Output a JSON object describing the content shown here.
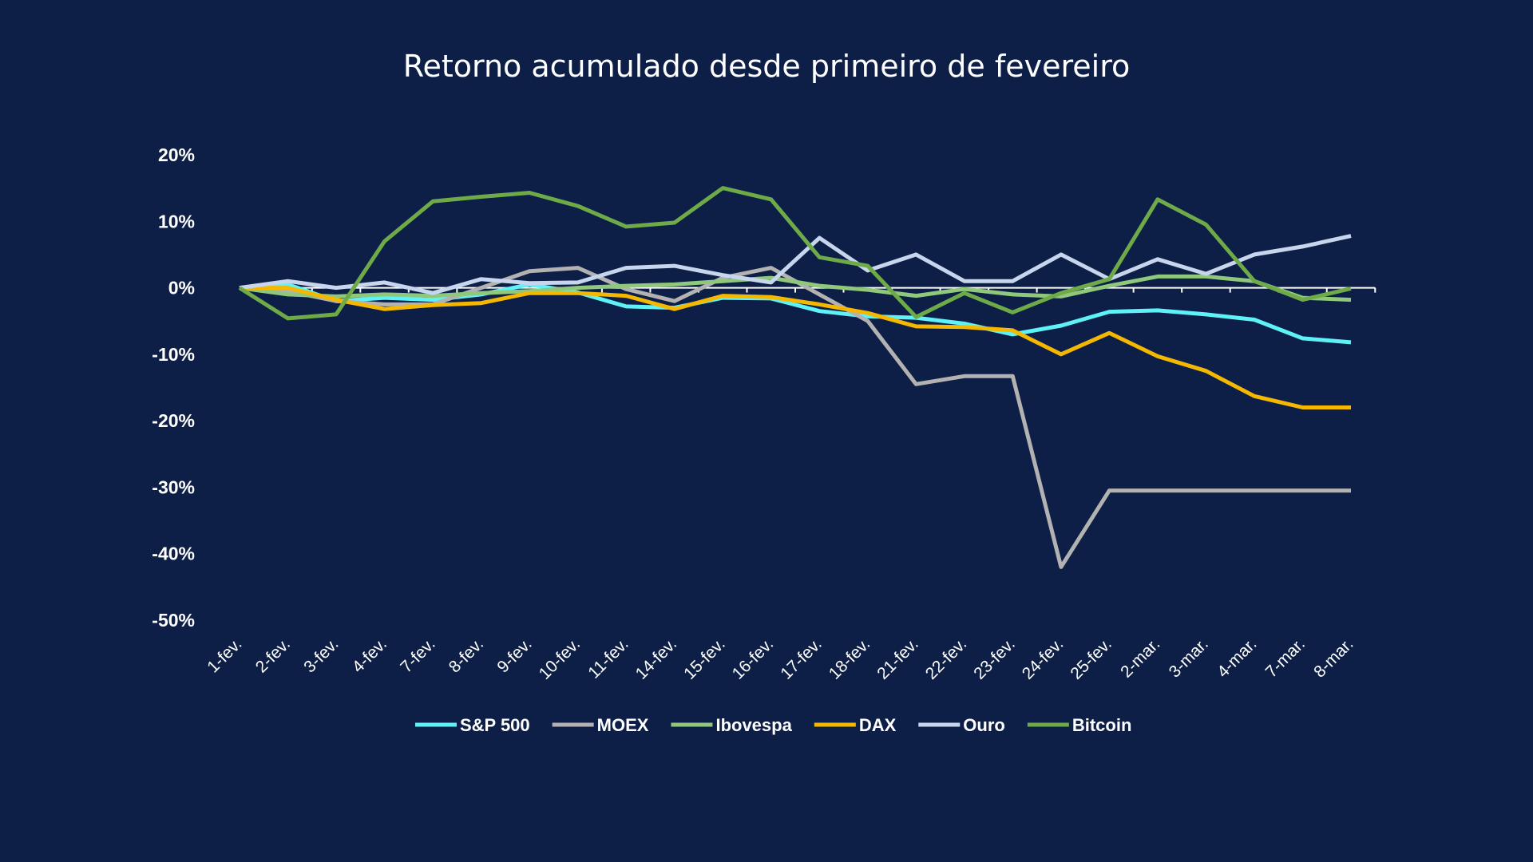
{
  "chart_data": {
    "type": "line",
    "title": "Retorno acumulado desde primeiro de fevereiro",
    "xlabel": "",
    "ylabel": "",
    "ylim": [
      -50,
      20
    ],
    "y_ticks": [
      20,
      10,
      0,
      -10,
      -20,
      -30,
      -40,
      -50
    ],
    "y_tick_labels": [
      "20%",
      "10%",
      "0%",
      "-10%",
      "-20%",
      "-30%",
      "-40%",
      "-50%"
    ],
    "grid": false,
    "legend_position": "bottom",
    "categories": [
      "1-fev.",
      "2-fev.",
      "3-fev.",
      "4-fev.",
      "7-fev.",
      "8-fev.",
      "9-fev.",
      "10-fev.",
      "11-fev.",
      "14-fev.",
      "15-fev.",
      "16-fev.",
      "17-fev.",
      "18-fev.",
      "21-fev.",
      "22-fev.",
      "23-fev.",
      "24-fev.",
      "25-fev.",
      "2-mar.",
      "3-mar.",
      "4-mar.",
      "7-mar.",
      "8-mar."
    ],
    "series": [
      {
        "name": "S&P 500",
        "color": "#5ef2f7",
        "values": [
          0,
          0.5,
          -2.0,
          -1.5,
          -1.8,
          -1.0,
          0.5,
          -0.7,
          -2.8,
          -3.0,
          -1.5,
          -1.6,
          -3.5,
          -4.3,
          -4.5,
          -5.4,
          -7.0,
          -5.7,
          -3.6,
          -3.4,
          -4.0,
          -4.8,
          -7.6,
          -8.2
        ]
      },
      {
        "name": "MOEX",
        "color": "#b2b2b2",
        "values": [
          0,
          -0.5,
          -2.0,
          -2.5,
          -2.5,
          0.0,
          2.5,
          3.0,
          -0.2,
          -2.0,
          1.5,
          3.0,
          -1.0,
          -5.0,
          -14.5,
          -13.3,
          -13.3,
          -42.0,
          -30.5,
          -30.5,
          -30.5,
          -30.5,
          -30.5,
          -30.5
        ]
      },
      {
        "name": "Ibovespa",
        "color": "#8fc87a",
        "values": [
          0,
          -1.0,
          -1.3,
          -1.0,
          -1.2,
          -0.8,
          -0.5,
          0.0,
          0.3,
          0.5,
          1.0,
          1.5,
          0.3,
          -0.3,
          -1.2,
          -0.2,
          -1.0,
          -1.3,
          0.3,
          1.7,
          1.7,
          1.0,
          -1.5,
          -1.8
        ]
      },
      {
        "name": "DAX",
        "color": "#f5b800",
        "values": [
          0,
          0,
          -1.8,
          -3.2,
          -2.6,
          -2.3,
          -0.8,
          -0.8,
          -1.2,
          -3.2,
          -1.2,
          -1.4,
          -2.5,
          -3.8,
          -5.8,
          -5.9,
          -6.4,
          -10.0,
          -6.8,
          -10.3,
          -12.5,
          -16.3,
          -18.0,
          -18.0
        ]
      },
      {
        "name": "Ouro",
        "color": "#c7d6ec",
        "values": [
          0,
          1.0,
          0,
          0.8,
          -0.8,
          1.3,
          0.7,
          0.8,
          3.0,
          3.3,
          1.9,
          0.8,
          7.5,
          2.6,
          5.0,
          1.0,
          1.0,
          5.0,
          1.3,
          4.3,
          2.1,
          5.0,
          6.2,
          7.8
        ]
      },
      {
        "name": "Bitcoin",
        "color": "#6eab48",
        "values": [
          0,
          -4.6,
          -4.0,
          7.0,
          13.0,
          13.7,
          14.3,
          12.3,
          9.2,
          9.8,
          15.0,
          13.3,
          4.6,
          3.3,
          -4.4,
          -0.8,
          -3.7,
          -0.8,
          1.3,
          13.3,
          9.5,
          1.0,
          -1.8,
          -0.1
        ]
      }
    ]
  }
}
